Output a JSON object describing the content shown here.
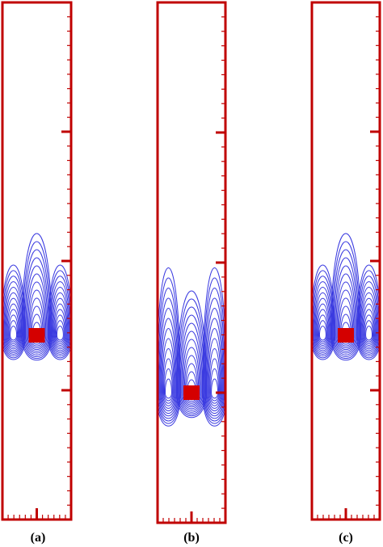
{
  "figure": {
    "panels": [
      {
        "label": "(a)",
        "obstacle_position": "middle",
        "contour_shape": "symmetric"
      },
      {
        "label": "(b)",
        "obstacle_position": "lower",
        "contour_shape": "symmetric"
      },
      {
        "label": "(c)",
        "obstacle_position": "middle",
        "contour_shape": "symmetric"
      }
    ],
    "colors": {
      "frame": "#c00000",
      "contour": "#3a3ae0",
      "obstacle": "#d40000",
      "label": "#000000"
    }
  }
}
